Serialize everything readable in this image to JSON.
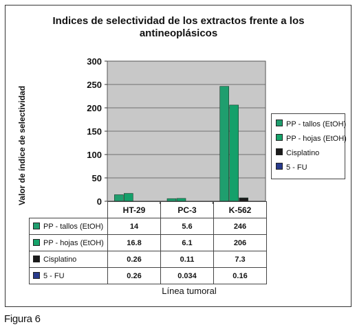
{
  "figure_caption": "Figura 6",
  "chart_data": {
    "type": "bar",
    "title_line1": "Indices de selectividad de los extractos frente a los",
    "title_line2": "antineoplásicos",
    "ylabel": "Valor de índice de selectividad",
    "xlabel": "Línea tumoral",
    "ylim": [
      0,
      300
    ],
    "yticks": [
      "0",
      "50",
      "100",
      "150",
      "200",
      "250",
      "300"
    ],
    "categories": [
      "HT-29",
      "PC-3",
      "K-562"
    ],
    "legend_position": "right",
    "grid": "horizontal",
    "plot_background": "#c8c8c8",
    "series": [
      {
        "name": "PP - tallos (EtOH)",
        "color": "#1f9e6e",
        "values": [
          14,
          5.6,
          246
        ],
        "labels": [
          "14",
          "5.6",
          "246"
        ]
      },
      {
        "name": "PP - hojas (EtOH)",
        "color": "#16a36a",
        "values": [
          16.8,
          6.1,
          206
        ],
        "labels": [
          "16.8",
          "6.1",
          "206"
        ]
      },
      {
        "name": "Cisplatino",
        "color": "#1a1a1a",
        "values": [
          0.26,
          0.11,
          7.3
        ],
        "labels": [
          "0.26",
          "0.11",
          "7.3"
        ]
      },
      {
        "name": "5 - FU",
        "color": "#283a8c",
        "values": [
          0.26,
          0.034,
          0.16
        ],
        "labels": [
          "0.26",
          "0.034",
          "0.16"
        ]
      }
    ]
  }
}
